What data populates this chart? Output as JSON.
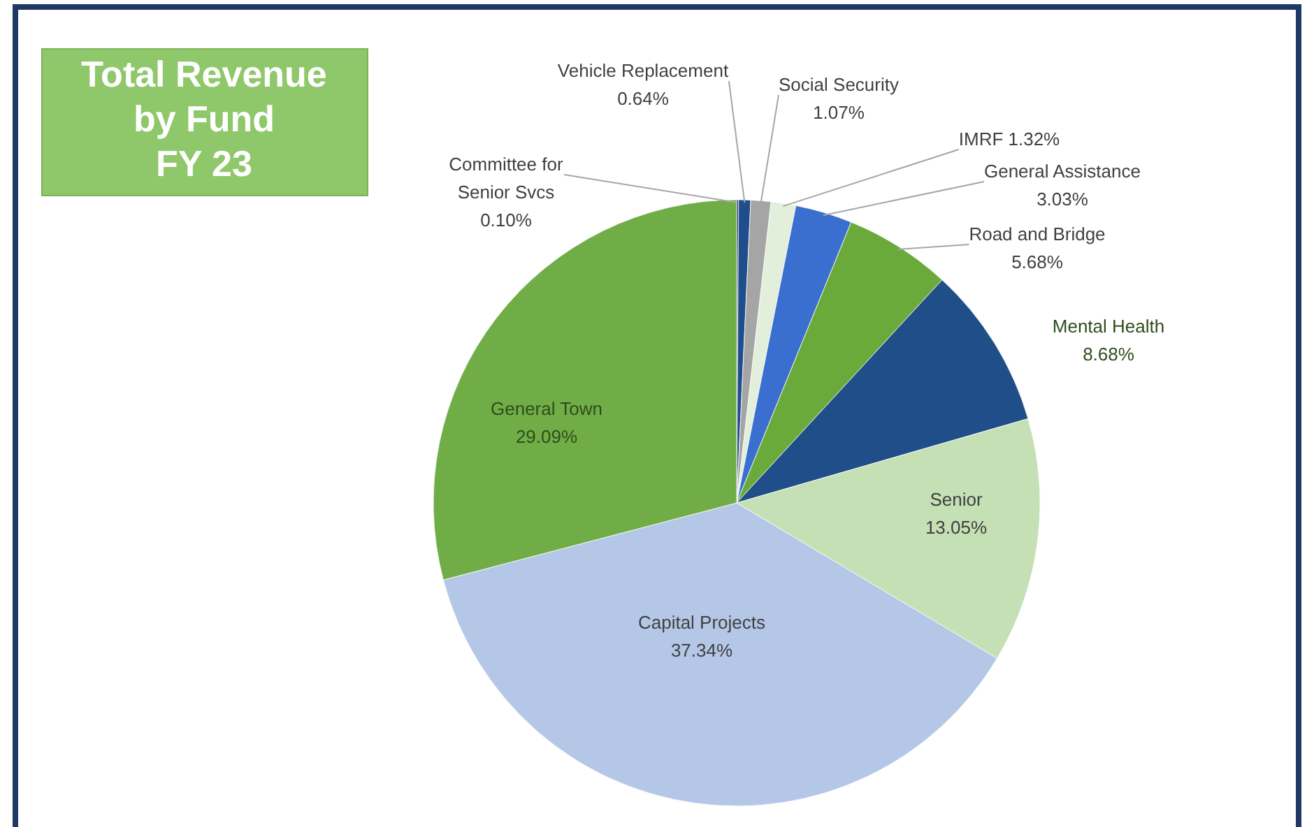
{
  "chart_data": {
    "type": "pie",
    "title": "Total Revenue by Fund FY 23",
    "categories": [
      "Committee for Senior Svcs",
      "Vehicle Replacement",
      "Social Security",
      "IMRF",
      "General Assistance",
      "Road and Bridge",
      "Mental Health",
      "Senior",
      "Capital Projects",
      "General Town"
    ],
    "values": [
      0.1,
      0.64,
      1.07,
      1.32,
      3.03,
      5.68,
      8.68,
      13.05,
      37.34,
      29.09
    ],
    "value_labels": [
      "0.10%",
      "0.64%",
      "1.07%",
      "1.32%",
      "3.03%",
      "5.68%",
      "8.68%",
      "13.05%",
      "37.34%",
      "29.09%"
    ],
    "colors": [
      "#1f3864",
      "#1f4e8c",
      "#a5a5a5",
      "#e2efda",
      "#3a6fd0",
      "#6aaa3a",
      "#1f4e89",
      "#c5e0b4",
      "#b4c7e7",
      "#70ad47"
    ]
  }
}
